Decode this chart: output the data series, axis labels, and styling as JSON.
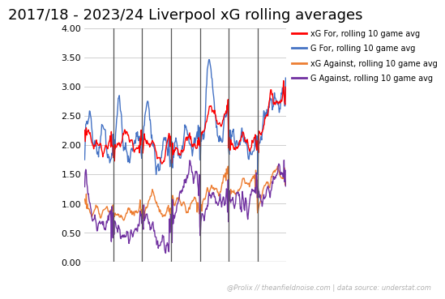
{
  "title": "2017/18 - 2023/24 Liverpool xG rolling averages",
  "legend_labels": [
    "xG For, rolling 10 game avg",
    "G For, rolling 10 game avg",
    "xG Against, rolling 10 game avg",
    "G Against, rolling 10 game avg"
  ],
  "legend_colors": [
    "#ff0000",
    "#4472c4",
    "#ed7d31",
    "#7030a0"
  ],
  "ylim": [
    0.0,
    4.0
  ],
  "yticks": [
    0.0,
    0.5,
    1.0,
    1.5,
    2.0,
    2.5,
    3.0,
    3.5,
    4.0
  ],
  "background_color": "#ffffff",
  "grid_color": "#c8c8c8",
  "watermark": "@Prolix // theanfieldnoise.com | data source: understat.com",
  "title_fontsize": 13,
  "n_seasons": 7,
  "pts_per_season": 54,
  "xgf_by_season": [
    [
      2.05,
      2.25,
      2.3,
      2.2,
      2.1,
      2.0,
      1.95,
      2.0,
      2.05,
      2.1,
      2.0,
      1.9,
      1.85,
      1.95,
      2.05,
      2.1,
      2.0,
      1.95
    ],
    [
      1.8,
      1.95,
      2.0,
      2.05,
      2.1,
      2.05,
      2.1,
      2.2,
      2.25,
      2.15,
      2.05,
      2.0,
      1.9,
      1.85,
      1.9,
      2.0,
      2.05,
      2.1
    ],
    [
      1.85,
      2.05,
      2.1,
      2.05,
      2.0,
      1.95,
      2.0,
      2.05,
      2.0,
      1.9,
      1.85,
      1.8,
      1.75,
      1.8,
      1.9,
      2.0,
      2.05,
      2.1
    ],
    [
      1.85,
      1.9,
      1.95,
      2.0,
      1.9,
      1.8,
      1.85,
      1.9,
      2.0,
      2.1,
      2.15,
      2.2,
      2.1,
      2.05,
      2.0,
      1.95,
      2.0,
      2.1
    ],
    [
      2.05,
      2.15,
      2.2,
      2.3,
      2.4,
      2.5,
      2.6,
      2.65,
      2.6,
      2.55,
      2.45,
      2.4,
      2.35,
      2.3,
      2.4,
      2.5,
      2.6,
      2.7
    ],
    [
      1.95,
      2.0,
      2.05,
      2.1,
      2.0,
      1.95,
      2.0,
      2.05,
      2.1,
      2.15,
      2.1,
      2.05,
      2.0,
      1.95,
      2.0,
      2.05,
      2.1,
      2.05
    ],
    [
      2.0,
      2.1,
      2.2,
      2.3,
      2.4,
      2.5,
      2.6,
      2.7,
      2.8,
      2.85,
      2.8,
      2.75,
      2.7,
      2.75,
      2.8,
      2.85,
      2.9,
      2.85
    ]
  ],
  "gf_by_season": [
    [
      1.75,
      2.4,
      2.8,
      2.6,
      2.3,
      2.1,
      1.9,
      1.8,
      1.9,
      2.0,
      2.2,
      2.4,
      2.3,
      2.1,
      1.95,
      1.85,
      1.9,
      2.0
    ],
    [
      1.8,
      2.1,
      2.5,
      2.8,
      2.6,
      2.3,
      2.1,
      2.0,
      1.9,
      1.8,
      1.85,
      1.9,
      2.0,
      2.1,
      2.2,
      2.1,
      2.0,
      1.9
    ],
    [
      2.0,
      2.3,
      2.6,
      2.8,
      2.6,
      2.3,
      2.1,
      1.9,
      1.8,
      1.7,
      1.75,
      1.8,
      1.9,
      2.0,
      2.1,
      2.0,
      1.9,
      1.8
    ],
    [
      1.8,
      1.9,
      2.0,
      2.1,
      1.95,
      1.85,
      1.9,
      2.0,
      2.1,
      2.2,
      2.1,
      2.0,
      1.9,
      1.85,
      1.9,
      2.0,
      2.1,
      2.15
    ],
    [
      1.9,
      2.0,
      2.2,
      2.6,
      3.0,
      3.3,
      3.4,
      3.2,
      2.8,
      2.5,
      2.3,
      2.1,
      2.0,
      2.1,
      2.3,
      2.5,
      2.6,
      2.5
    ],
    [
      1.8,
      2.0,
      2.1,
      2.2,
      2.1,
      2.0,
      2.1,
      2.2,
      2.3,
      2.2,
      2.1,
      2.0,
      1.9,
      1.85,
      1.9,
      2.0,
      2.1,
      2.05
    ],
    [
      1.8,
      1.9,
      2.0,
      2.2,
      2.4,
      2.6,
      2.7,
      2.75,
      2.8,
      2.85,
      2.8,
      2.75,
      2.7,
      2.75,
      2.8,
      2.85,
      2.9,
      2.85
    ]
  ],
  "xga_by_season": [
    [
      1.1,
      1.0,
      0.9,
      0.85,
      0.8,
      0.85,
      0.9,
      0.95,
      0.9,
      0.85,
      0.8,
      0.85,
      0.9,
      0.95,
      0.9,
      0.85,
      0.9,
      0.95
    ],
    [
      0.85,
      0.8,
      0.75,
      0.8,
      0.85,
      0.8,
      0.75,
      0.8,
      0.85,
      0.9,
      0.85,
      0.8,
      0.75,
      0.8,
      0.85,
      0.9,
      0.85,
      0.85
    ],
    [
      0.85,
      0.9,
      0.95,
      1.0,
      1.05,
      1.1,
      1.15,
      1.2,
      1.1,
      1.0,
      0.9,
      0.85,
      0.8,
      0.75,
      0.8,
      0.85,
      0.9,
      0.95
    ],
    [
      0.9,
      0.95,
      1.0,
      1.05,
      1.1,
      1.05,
      1.0,
      0.95,
      0.9,
      0.85,
      0.85,
      0.9,
      0.95,
      1.0,
      1.05,
      1.0,
      0.95,
      0.9
    ],
    [
      0.9,
      0.95,
      1.0,
      1.05,
      1.1,
      1.15,
      1.2,
      1.25,
      1.3,
      1.25,
      1.2,
      1.15,
      1.2,
      1.3,
      1.4,
      1.5,
      1.55,
      1.55
    ],
    [
      1.0,
      1.05,
      1.1,
      1.15,
      1.2,
      1.25,
      1.3,
      1.35,
      1.4,
      1.45,
      1.4,
      1.35,
      1.3,
      1.35,
      1.4,
      1.45,
      1.5,
      1.5
    ],
    [
      1.0,
      1.05,
      1.1,
      1.15,
      1.2,
      1.25,
      1.3,
      1.35,
      1.4,
      1.45,
      1.5,
      1.55,
      1.6,
      1.55,
      1.5,
      1.45,
      1.4,
      1.35
    ]
  ],
  "ga_by_season": [
    [
      1.5,
      1.3,
      1.1,
      0.9,
      0.75,
      0.7,
      0.75,
      0.8,
      0.75,
      0.7,
      0.65,
      0.7,
      0.75,
      0.7,
      0.65,
      0.7,
      0.75,
      0.7
    ],
    [
      0.7,
      0.65,
      0.6,
      0.55,
      0.5,
      0.45,
      0.42,
      0.4,
      0.42,
      0.45,
      0.48,
      0.5,
      0.48,
      0.45,
      0.5,
      0.55,
      0.6,
      0.62
    ],
    [
      0.65,
      0.7,
      0.75,
      0.7,
      0.65,
      0.6,
      0.55,
      0.5,
      0.45,
      0.4,
      0.35,
      0.3,
      0.28,
      0.3,
      0.35,
      0.4,
      0.45,
      0.5
    ],
    [
      0.6,
      0.7,
      0.8,
      0.9,
      1.0,
      1.1,
      1.2,
      1.3,
      1.4,
      1.5,
      1.55,
      1.6,
      1.55,
      1.5,
      1.45,
      1.4,
      1.35,
      1.3
    ],
    [
      0.7,
      0.75,
      0.8,
      0.9,
      1.0,
      1.1,
      1.15,
      1.2,
      1.25,
      1.2,
      1.15,
      1.1,
      1.05,
      1.0,
      1.05,
      1.1,
      1.15,
      1.2
    ],
    [
      0.85,
      0.9,
      0.95,
      1.0,
      1.05,
      1.1,
      1.05,
      1.0,
      0.95,
      0.9,
      0.95,
      1.0,
      1.05,
      1.1,
      1.15,
      1.2,
      1.25,
      1.3
    ],
    [
      0.9,
      0.95,
      1.0,
      1.05,
      1.1,
      1.15,
      1.2,
      1.25,
      1.3,
      1.35,
      1.4,
      1.45,
      1.5,
      1.55,
      1.6,
      1.55,
      1.5,
      1.45
    ]
  ]
}
